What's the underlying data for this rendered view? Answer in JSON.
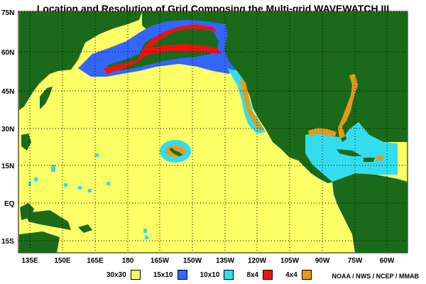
{
  "title": "Location and Resolution of Grid Composing the Multi-grid WAVEWATCH III",
  "lat_labels": [
    "75N",
    "60N",
    "45N",
    "30N",
    "15N",
    "EQ",
    "15S"
  ],
  "lon_labels": [
    "135E",
    "150E",
    "165E",
    "180",
    "165W",
    "150W",
    "135W",
    "120W",
    "105W",
    "90W",
    "75W",
    "60W"
  ],
  "legend": [
    {
      "label": "30x30",
      "color": "#ffff66"
    },
    {
      "label": "15x10",
      "color": "#3366ff"
    },
    {
      "label": "10x10",
      "color": "#33ddee"
    },
    {
      "label": "8x4",
      "color": "#ee1111"
    },
    {
      "label": "4x4",
      "color": "#e69a1c"
    }
  ],
  "colors": {
    "land": "#1a6a1a",
    "ocean": "#ffff66"
  },
  "credit": "NOAA / NWS / NCEP / MMAB"
}
